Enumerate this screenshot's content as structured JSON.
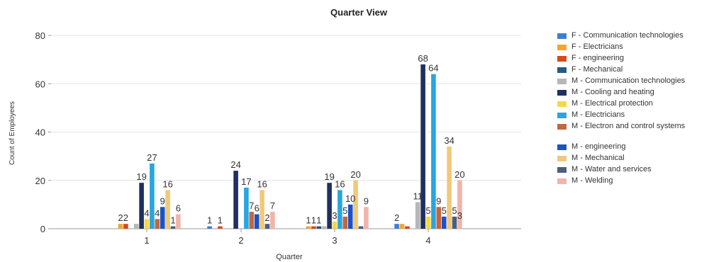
{
  "chart_data": {
    "type": "bar",
    "title": "Quarter View",
    "xlabel": "Quarter",
    "ylabel": "Count of Employees",
    "ylim": [
      0,
      80
    ],
    "yticks": [
      0,
      20,
      40,
      60,
      80
    ],
    "grid": true,
    "legend_position": "right",
    "categories": [
      "1",
      "2",
      "3",
      "4"
    ],
    "series": [
      {
        "name": "F - Communication technologies",
        "color": "#3c7fd6",
        "values": [
          null,
          1,
          null,
          2
        ]
      },
      {
        "name": "F - Electricians",
        "color": "#f2a630",
        "values": [
          2,
          null,
          1,
          2
        ]
      },
      {
        "name": "F - engineering",
        "color": "#d8491c",
        "values": [
          2,
          1,
          1,
          1
        ]
      },
      {
        "name": "F - Mechanical",
        "color": "#1f5c86",
        "values": [
          null,
          null,
          1,
          null
        ]
      },
      {
        "name": "M - Communication technologies",
        "color": "#b7b7b7",
        "values": [
          2,
          null,
          1,
          11
        ]
      },
      {
        "name": "M - Cooling and heating",
        "color": "#1d3060",
        "values": [
          19,
          24,
          19,
          68
        ]
      },
      {
        "name": "M - Electrical protection",
        "color": "#f5d84a",
        "values": [
          4,
          null,
          3,
          5
        ]
      },
      {
        "name": "M - Electricians",
        "color": "#27a6e0",
        "values": [
          27,
          17,
          16,
          64
        ]
      },
      {
        "name": "M - Electron and control systems",
        "color": "#c4663f",
        "values": [
          4,
          7,
          5,
          9
        ]
      },
      {
        "name": "M - engineering",
        "color": "#1b52c6",
        "values": [
          9,
          6,
          10,
          5
        ]
      },
      {
        "name": "M - Mechanical",
        "color": "#f0c97a",
        "values": [
          16,
          16,
          20,
          34
        ]
      },
      {
        "name": "M - Water and services",
        "color": "#4b5f7a",
        "values": [
          1,
          2,
          1,
          5
        ]
      },
      {
        "name": "M - Welding",
        "color": "#f2b3ab",
        "values": [
          6,
          7,
          9,
          20
        ]
      }
    ],
    "data_labels": [
      {
        "text": "2",
        "x": "1",
        "y": 2
      },
      {
        "text": "4",
        "x": "1",
        "y": 4
      },
      {
        "text": "2",
        "x": "1",
        "y": 2
      },
      {
        "text": "19",
        "x": "1",
        "y": 19
      },
      {
        "text": "27",
        "x": "1",
        "y": 27
      },
      {
        "text": "4",
        "x": "1",
        "y": 4
      },
      {
        "text": "9",
        "x": "1",
        "y": 9
      },
      {
        "text": "16",
        "x": "1",
        "y": 16
      },
      {
        "text": "1",
        "x": "1",
        "y": 1
      },
      {
        "text": "6",
        "x": "1",
        "y": 6
      },
      {
        "text": "1",
        "x": "2",
        "y": 1
      },
      {
        "text": "1",
        "x": "2",
        "y": 1
      },
      {
        "text": "24",
        "x": "2",
        "y": 24
      },
      {
        "text": "17",
        "x": "2",
        "y": 17
      },
      {
        "text": "7",
        "x": "2",
        "y": 7
      },
      {
        "text": "6",
        "x": "2",
        "y": 6
      },
      {
        "text": "16",
        "x": "2",
        "y": 16
      },
      {
        "text": "2",
        "x": "2",
        "y": 2
      },
      {
        "text": "7",
        "x": "2",
        "y": 7
      },
      {
        "text": "1",
        "x": "3",
        "y": 1
      },
      {
        "text": "1",
        "x": "3",
        "y": 1
      },
      {
        "text": "19",
        "x": "3",
        "y": 19
      },
      {
        "text": "3",
        "x": "3",
        "y": 3
      },
      {
        "text": "16",
        "x": "3",
        "y": 16
      },
      {
        "text": "5",
        "x": "3",
        "y": 5
      },
      {
        "text": "20",
        "x": "3",
        "y": 20
      },
      {
        "text": "10",
        "x": "3",
        "y": 10
      },
      {
        "text": "1",
        "x": "3",
        "y": 1
      },
      {
        "text": "9",
        "x": "3",
        "y": 9
      },
      {
        "text": "2",
        "x": "4",
        "y": 2
      },
      {
        "text": "3",
        "x": "4",
        "y": 3
      },
      {
        "text": "11",
        "x": "4",
        "y": 11
      },
      {
        "text": "68",
        "x": "4",
        "y": 68
      },
      {
        "text": "5",
        "x": "4",
        "y": 5
      },
      {
        "text": "64",
        "x": "4",
        "y": 64
      },
      {
        "text": "9",
        "x": "4",
        "y": 9
      },
      {
        "text": "5",
        "x": "4",
        "y": 5
      },
      {
        "text": "34",
        "x": "4",
        "y": 34
      },
      {
        "text": "5",
        "x": "4",
        "y": 5
      },
      {
        "text": "20",
        "x": "4",
        "y": 20
      }
    ]
  }
}
